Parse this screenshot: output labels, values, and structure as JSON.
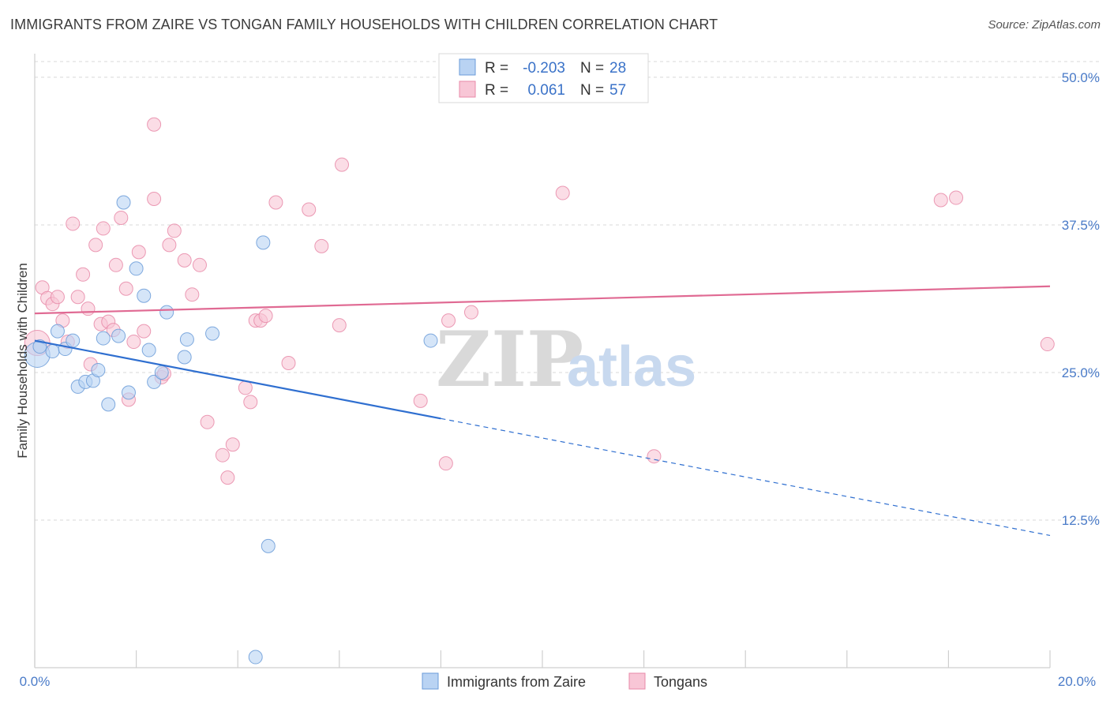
{
  "header": {
    "title": "IMMIGRANTS FROM ZAIRE VS TONGAN FAMILY HOUSEHOLDS WITH CHILDREN CORRELATION CHART",
    "source": "Source: ZipAtlas.com"
  },
  "watermark": {
    "zip": "ZIP",
    "atlas": "atlas"
  },
  "stats": [
    {
      "r_label": "R =",
      "r_value": "-0.203",
      "n_label": "N =",
      "n_value": "28"
    },
    {
      "r_label": "R =",
      "r_value": "0.061",
      "n_label": "N =",
      "n_value": "57"
    }
  ],
  "chart_data": {
    "type": "scatter",
    "title": "IMMIGRANTS FROM ZAIRE VS TONGAN FAMILY HOUSEHOLDS WITH CHILDREN CORRELATION CHART",
    "xlabel": "",
    "ylabel": "Family Households with Children",
    "xlim": [
      0,
      20
    ],
    "ylim": [
      0,
      52
    ],
    "x_tick_labels": [
      "0.0%",
      "20.0%"
    ],
    "y_ticks": [
      12.5,
      25.0,
      37.5,
      50.0
    ],
    "y_tick_labels": [
      "12.5%",
      "25.0%",
      "37.5%",
      "50.0%"
    ],
    "grid": true,
    "legend_position": "bottom-center",
    "colors": {
      "zaire_fill": "#b9d3f3",
      "zaire_stroke": "#6a9bd8",
      "zaire_line": "#2f6fd0",
      "tongan_fill": "#f8c6d6",
      "tongan_stroke": "#e88aa8",
      "tongan_line": "#e06a93",
      "tick_text": "#4a7bc8",
      "grid": "#d8d8d8"
    },
    "series": [
      {
        "name": "Immigrants from Zaire",
        "points": [
          [
            0.05,
            26.5
          ],
          [
            0.1,
            27.2
          ],
          [
            0.35,
            26.8
          ],
          [
            0.45,
            28.5
          ],
          [
            0.6,
            27.0
          ],
          [
            0.75,
            27.7
          ],
          [
            0.85,
            23.8
          ],
          [
            1.0,
            24.2
          ],
          [
            1.15,
            24.3
          ],
          [
            1.25,
            25.2
          ],
          [
            1.35,
            27.9
          ],
          [
            1.45,
            22.3
          ],
          [
            1.65,
            28.1
          ],
          [
            1.75,
            39.4
          ],
          [
            1.85,
            23.3
          ],
          [
            2.0,
            33.8
          ],
          [
            2.15,
            31.5
          ],
          [
            2.25,
            26.9
          ],
          [
            2.35,
            24.2
          ],
          [
            2.5,
            25.0
          ],
          [
            2.6,
            30.1
          ],
          [
            2.95,
            26.3
          ],
          [
            3.0,
            27.8
          ],
          [
            3.5,
            28.3
          ],
          [
            4.5,
            36.0
          ],
          [
            4.6,
            10.3
          ],
          [
            4.35,
            0.9
          ],
          [
            7.8,
            27.7
          ]
        ],
        "trend": {
          "x0": 0.0,
          "y0": 27.7,
          "x1": 8.0,
          "y1": 21.1,
          "dash_x1": 20.0,
          "dash_y1": 11.2
        }
      },
      {
        "name": "Tongans",
        "points": [
          [
            0.05,
            27.5
          ],
          [
            0.15,
            32.2
          ],
          [
            0.25,
            31.3
          ],
          [
            0.35,
            30.8
          ],
          [
            0.45,
            31.4
          ],
          [
            0.55,
            29.4
          ],
          [
            0.65,
            27.6
          ],
          [
            0.75,
            37.6
          ],
          [
            0.85,
            31.4
          ],
          [
            0.95,
            33.3
          ],
          [
            1.05,
            30.4
          ],
          [
            1.1,
            25.7
          ],
          [
            1.2,
            35.8
          ],
          [
            1.3,
            29.1
          ],
          [
            1.35,
            37.2
          ],
          [
            1.45,
            29.3
          ],
          [
            1.55,
            28.6
          ],
          [
            1.6,
            34.1
          ],
          [
            1.7,
            38.1
          ],
          [
            1.8,
            32.1
          ],
          [
            1.85,
            22.7
          ],
          [
            1.95,
            27.6
          ],
          [
            2.05,
            35.2
          ],
          [
            2.15,
            28.5
          ],
          [
            2.35,
            46.0
          ],
          [
            2.35,
            39.7
          ],
          [
            2.5,
            24.6
          ],
          [
            2.55,
            24.9
          ],
          [
            2.65,
            35.8
          ],
          [
            2.75,
            37.0
          ],
          [
            2.95,
            34.5
          ],
          [
            3.1,
            31.6
          ],
          [
            3.25,
            34.1
          ],
          [
            3.4,
            20.8
          ],
          [
            3.7,
            18.0
          ],
          [
            3.8,
            16.1
          ],
          [
            3.9,
            18.9
          ],
          [
            4.15,
            23.7
          ],
          [
            4.25,
            22.5
          ],
          [
            4.35,
            29.4
          ],
          [
            4.45,
            29.4
          ],
          [
            4.55,
            29.8
          ],
          [
            4.75,
            39.4
          ],
          [
            5.0,
            25.8
          ],
          [
            5.4,
            38.8
          ],
          [
            5.65,
            35.7
          ],
          [
            6.0,
            29.0
          ],
          [
            6.05,
            42.6
          ],
          [
            7.6,
            22.6
          ],
          [
            8.1,
            17.3
          ],
          [
            8.15,
            29.4
          ],
          [
            8.6,
            30.1
          ],
          [
            10.4,
            40.2
          ],
          [
            12.2,
            17.9
          ],
          [
            17.85,
            39.6
          ],
          [
            18.15,
            39.8
          ],
          [
            19.95,
            27.4
          ]
        ],
        "trend": {
          "x0": 0.0,
          "y0": 30.0,
          "x1": 20.0,
          "y1": 32.3
        }
      }
    ]
  }
}
